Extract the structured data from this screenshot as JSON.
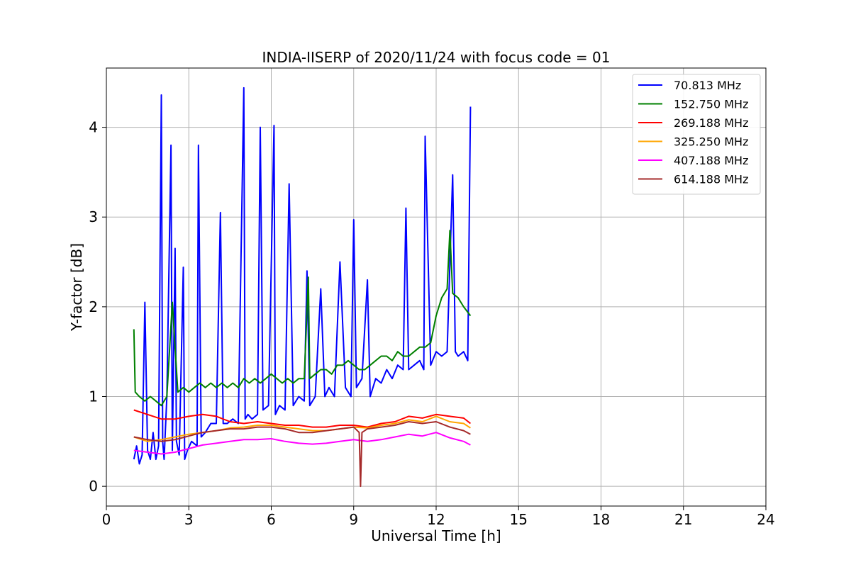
{
  "chart_data": {
    "type": "line",
    "title": "INDIA-IISERP of 2020/11/24 with focus code = 01",
    "xlabel": "Universal Time [h]",
    "ylabel": "Y-factor [dB]",
    "xlim": [
      0,
      24
    ],
    "ylim": [
      -0.22,
      4.66
    ],
    "xticks": [
      "0",
      "3",
      "6",
      "9",
      "12",
      "15",
      "18",
      "21",
      "24"
    ],
    "yticks": [
      "0",
      "1",
      "2",
      "3",
      "4"
    ],
    "grid": true,
    "legend_position": "top-right",
    "series": [
      {
        "name": " 70.813 MHz",
        "color": "#0000ff",
        "x": [
          1.0,
          1.1,
          1.2,
          1.3,
          1.4,
          1.5,
          1.6,
          1.7,
          1.8,
          1.9,
          2.0,
          2.05,
          2.1,
          2.2,
          2.35,
          2.4,
          2.5,
          2.55,
          2.65,
          2.8,
          2.85,
          2.95,
          3.1,
          3.3,
          3.35,
          3.45,
          3.6,
          3.8,
          4.0,
          4.15,
          4.25,
          4.4,
          4.6,
          4.8,
          5.0,
          5.05,
          5.15,
          5.3,
          5.5,
          5.6,
          5.7,
          5.9,
          6.1,
          6.15,
          6.3,
          6.5,
          6.65,
          6.8,
          7.0,
          7.2,
          7.3,
          7.4,
          7.6,
          7.8,
          7.95,
          8.1,
          8.3,
          8.5,
          8.7,
          8.9,
          9.0,
          9.1,
          9.3,
          9.5,
          9.6,
          9.8,
          10.0,
          10.2,
          10.4,
          10.6,
          10.8,
          10.9,
          11.0,
          11.2,
          11.4,
          11.55,
          11.6,
          11.8,
          12.0,
          12.2,
          12.4,
          12.6,
          12.7,
          12.8,
          13.0,
          13.15,
          13.25
        ],
        "values": [
          0.3,
          0.45,
          0.25,
          0.35,
          2.05,
          0.4,
          0.3,
          0.6,
          0.3,
          0.45,
          4.36,
          0.5,
          0.3,
          1.0,
          3.8,
          0.4,
          2.65,
          0.5,
          0.35,
          2.44,
          0.3,
          0.4,
          0.5,
          0.45,
          3.8,
          0.55,
          0.6,
          0.7,
          0.7,
          3.05,
          0.7,
          0.7,
          0.75,
          0.7,
          4.44,
          0.75,
          0.8,
          0.75,
          0.8,
          4.0,
          0.85,
          0.9,
          4.02,
          0.8,
          0.9,
          0.85,
          3.37,
          0.9,
          1.0,
          0.95,
          2.4,
          0.9,
          1.0,
          2.2,
          1.0,
          1.1,
          1.0,
          2.5,
          1.1,
          1.0,
          2.97,
          1.1,
          1.2,
          2.3,
          1.0,
          1.2,
          1.15,
          1.3,
          1.2,
          1.35,
          1.3,
          3.1,
          1.3,
          1.35,
          1.4,
          1.3,
          3.9,
          1.35,
          1.5,
          1.45,
          1.5,
          3.47,
          1.5,
          1.45,
          1.5,
          1.4,
          4.23
        ]
      },
      {
        "name": "152.750 MHz",
        "color": "#008000",
        "x": [
          1.0,
          1.05,
          1.2,
          1.4,
          1.6,
          1.8,
          2.0,
          2.2,
          2.4,
          2.6,
          2.8,
          3.0,
          3.2,
          3.4,
          3.6,
          3.8,
          4.0,
          4.2,
          4.4,
          4.6,
          4.8,
          5.0,
          5.2,
          5.4,
          5.6,
          5.8,
          6.0,
          6.2,
          6.4,
          6.6,
          6.8,
          7.0,
          7.2,
          7.35,
          7.4,
          7.6,
          7.8,
          8.0,
          8.2,
          8.4,
          8.6,
          8.8,
          9.0,
          9.2,
          9.4,
          9.6,
          9.8,
          10.0,
          10.2,
          10.4,
          10.6,
          10.8,
          11.0,
          11.2,
          11.4,
          11.6,
          11.8,
          12.0,
          12.2,
          12.4,
          12.5,
          12.6,
          12.8,
          13.0,
          13.25
        ],
        "values": [
          1.75,
          1.05,
          1.0,
          0.95,
          1.0,
          0.95,
          0.9,
          1.0,
          2.05,
          1.05,
          1.1,
          1.05,
          1.1,
          1.15,
          1.1,
          1.15,
          1.1,
          1.15,
          1.1,
          1.15,
          1.1,
          1.2,
          1.15,
          1.2,
          1.15,
          1.2,
          1.25,
          1.2,
          1.15,
          1.2,
          1.15,
          1.2,
          1.2,
          2.33,
          1.2,
          1.25,
          1.3,
          1.3,
          1.25,
          1.35,
          1.35,
          1.4,
          1.35,
          1.3,
          1.3,
          1.35,
          1.4,
          1.45,
          1.45,
          1.4,
          1.5,
          1.45,
          1.45,
          1.5,
          1.55,
          1.55,
          1.6,
          1.9,
          2.1,
          2.2,
          2.85,
          2.15,
          2.1,
          2.0,
          1.9
        ]
      },
      {
        "name": "269.188 MHz",
        "color": "#ff0000",
        "x": [
          1.0,
          1.5,
          2.0,
          2.5,
          3.0,
          3.5,
          4.0,
          4.5,
          5.0,
          5.5,
          6.0,
          6.5,
          7.0,
          7.5,
          8.0,
          8.5,
          9.0,
          9.5,
          10.0,
          10.5,
          11.0,
          11.5,
          12.0,
          12.5,
          13.0,
          13.25
        ],
        "values": [
          0.85,
          0.8,
          0.75,
          0.75,
          0.78,
          0.8,
          0.78,
          0.72,
          0.7,
          0.72,
          0.7,
          0.68,
          0.68,
          0.66,
          0.66,
          0.68,
          0.68,
          0.66,
          0.7,
          0.72,
          0.78,
          0.76,
          0.8,
          0.78,
          0.76,
          0.7
        ]
      },
      {
        "name": "325.250 MHz",
        "color": "#ffa500",
        "x": [
          1.0,
          1.5,
          2.0,
          2.5,
          3.0,
          3.5,
          4.0,
          4.5,
          5.0,
          5.5,
          6.0,
          6.5,
          7.0,
          7.5,
          8.0,
          8.5,
          9.0,
          9.5,
          10.0,
          10.5,
          11.0,
          11.5,
          12.0,
          12.5,
          13.0,
          13.25
        ],
        "values": [
          0.55,
          0.5,
          0.52,
          0.55,
          0.58,
          0.6,
          0.62,
          0.65,
          0.66,
          0.68,
          0.68,
          0.66,
          0.64,
          0.62,
          0.62,
          0.64,
          0.66,
          0.65,
          0.68,
          0.7,
          0.74,
          0.72,
          0.78,
          0.72,
          0.7,
          0.65
        ]
      },
      {
        "name": "407.188 MHz",
        "color": "#ff00ff",
        "x": [
          1.0,
          1.5,
          2.0,
          2.5,
          3.0,
          3.5,
          4.0,
          4.5,
          5.0,
          5.5,
          6.0,
          6.5,
          7.0,
          7.5,
          8.0,
          8.5,
          9.0,
          9.5,
          10.0,
          10.5,
          11.0,
          11.5,
          12.0,
          12.5,
          13.0,
          13.25
        ],
        "values": [
          0.4,
          0.38,
          0.36,
          0.38,
          0.42,
          0.46,
          0.48,
          0.5,
          0.52,
          0.52,
          0.53,
          0.5,
          0.48,
          0.47,
          0.48,
          0.5,
          0.52,
          0.5,
          0.52,
          0.55,
          0.58,
          0.56,
          0.6,
          0.54,
          0.5,
          0.46
        ]
      },
      {
        "name": "614.188 MHz",
        "color": "#a52a2a",
        "x": [
          1.0,
          1.5,
          2.0,
          2.5,
          3.0,
          3.5,
          4.0,
          4.5,
          5.0,
          5.5,
          6.0,
          6.5,
          7.0,
          7.5,
          8.0,
          8.5,
          9.0,
          9.2,
          9.25,
          9.3,
          9.5,
          10.0,
          10.5,
          11.0,
          11.5,
          12.0,
          12.5,
          13.0,
          13.25
        ],
        "values": [
          0.55,
          0.52,
          0.5,
          0.52,
          0.56,
          0.6,
          0.62,
          0.64,
          0.64,
          0.66,
          0.66,
          0.64,
          0.6,
          0.6,
          0.62,
          0.64,
          0.66,
          0.6,
          0.0,
          0.6,
          0.64,
          0.66,
          0.68,
          0.72,
          0.7,
          0.72,
          0.66,
          0.62,
          0.58
        ]
      }
    ]
  }
}
